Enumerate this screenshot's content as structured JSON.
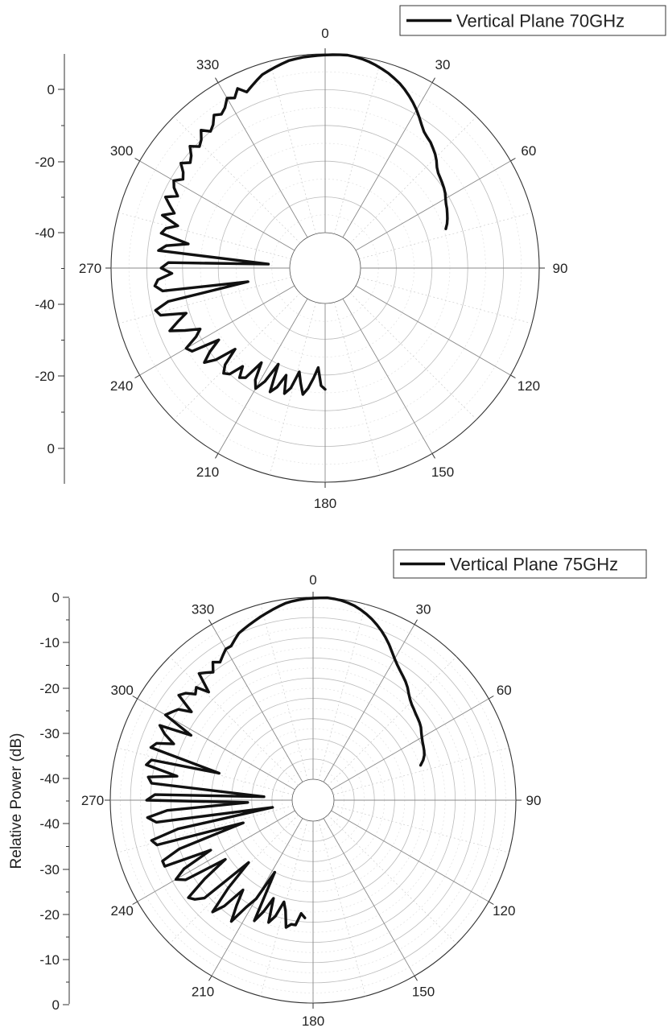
{
  "chart_data": [
    {
      "type": "polar-line",
      "legend": "Vertical Plane 70GHz",
      "legend_placement": "top-right",
      "ylabel": "",
      "r_range_db": [
        -50,
        0
      ],
      "r_tick_labels": [
        "0",
        "-20",
        "-40",
        "-40",
        "-20",
        "0"
      ],
      "angle_tick_labels": [
        "0",
        "30",
        "60",
        "90",
        "120",
        "150",
        "180",
        "210",
        "240",
        "270",
        "300",
        "330"
      ],
      "grid": true,
      "series": [
        {
          "name": "Vertical Plane 70GHz",
          "theta_deg": [
            180,
            182,
            184,
            186,
            188,
            190,
            192,
            194,
            196,
            198,
            200,
            202,
            204,
            206,
            208,
            210,
            212,
            214,
            216,
            218,
            220,
            222,
            224,
            226,
            228,
            230,
            232,
            234,
            236,
            238,
            240,
            242,
            244,
            246,
            248,
            250,
            252,
            254,
            256,
            258,
            260,
            262,
            264,
            266,
            268,
            270,
            272,
            274,
            276,
            278,
            280,
            282,
            284,
            286,
            288,
            290,
            292,
            294,
            296,
            298,
            300,
            302,
            304,
            306,
            308,
            310,
            312,
            314,
            316,
            318,
            320,
            322,
            324,
            326,
            328,
            330,
            332,
            334,
            336,
            338,
            340,
            342,
            344,
            346,
            348,
            350,
            352,
            354,
            356,
            358,
            360,
            362,
            364,
            366,
            368,
            370,
            372,
            374,
            376,
            378,
            380,
            382,
            384,
            386,
            388,
            390,
            392,
            394,
            396,
            398,
            400,
            402,
            404,
            406,
            408,
            410,
            412,
            414,
            416,
            418,
            420,
            422,
            424,
            426,
            428,
            430,
            432
          ],
          "db": [
            -26,
            -27,
            -32,
            -29,
            -26,
            -24,
            -27,
            -30,
            -25,
            -23,
            -28,
            -24,
            -22,
            -30,
            -24,
            -21,
            -23,
            -28,
            -22,
            -21,
            -24,
            -20,
            -19,
            -21,
            -26,
            -20,
            -17,
            -20,
            -24,
            -16,
            -15,
            -19,
            -21,
            -17,
            -13,
            -16,
            -19,
            -12,
            -11,
            -15,
            -38,
            -14,
            -12,
            -13,
            -17,
            -14,
            -16,
            -44,
            -13,
            -15,
            -21,
            -13,
            -14,
            -17,
            -12,
            -15,
            -13,
            -11,
            -14,
            -12,
            -11,
            -13,
            -12,
            -10,
            -12,
            -11,
            -9,
            -11,
            -10,
            -8,
            -10,
            -9,
            -7,
            -8,
            -7,
            -5,
            -6,
            -4,
            -6,
            -5,
            -4,
            -3,
            -2.5,
            -2,
            -1.5,
            -1,
            -0.8,
            -0.6,
            -0.5,
            -0.4,
            -0.3,
            -0.2,
            -0.1,
            0,
            -0.2,
            -0.5,
            -0.9,
            -1.4,
            -2,
            -2.6,
            -3.4,
            -4.2,
            -5.2,
            -6.3,
            -7.5,
            -8.8,
            -10.2,
            -11.6,
            -12.8,
            -13.5,
            -14,
            -14.8,
            -15.6,
            -16.6,
            -17.8,
            -18.6,
            -19,
            -19.4,
            -19.8,
            -20.3,
            -21,
            -21.6,
            -22,
            -22.5,
            -23,
            -23.6,
            -24.4
          ]
        }
      ]
    },
    {
      "type": "polar-line",
      "legend": "Vertical Plane 75GHz",
      "legend_placement": "top-right",
      "ylabel": "Relative Power (dB)",
      "r_range_db": [
        -45,
        0
      ],
      "r_tick_labels": [
        "0",
        "-10",
        "-20",
        "-30",
        "-40",
        "-40",
        "-30",
        "-20",
        "-10",
        "0"
      ],
      "angle_tick_labels": [
        "0",
        "30",
        "60",
        "90",
        "120",
        "150",
        "180",
        "210",
        "240",
        "270",
        "300",
        "330"
      ],
      "grid": true,
      "series": [
        {
          "name": "Vertical Plane 75GHz",
          "theta_deg": [
            184,
            186,
            188,
            190,
            192,
            194,
            196,
            198,
            200,
            202,
            204,
            206,
            208,
            210,
            212,
            214,
            216,
            218,
            220,
            222,
            224,
            226,
            228,
            230,
            232,
            234,
            236,
            238,
            240,
            242,
            244,
            246,
            248,
            250,
            252,
            254,
            256,
            258,
            260,
            262,
            264,
            266,
            268,
            270,
            272,
            274,
            276,
            278,
            280,
            282,
            284,
            286,
            288,
            290,
            292,
            294,
            296,
            298,
            300,
            302,
            304,
            306,
            308,
            310,
            312,
            314,
            316,
            318,
            320,
            322,
            324,
            326,
            328,
            330,
            332,
            334,
            336,
            338,
            340,
            342,
            344,
            346,
            348,
            350,
            352,
            354,
            356,
            358,
            360,
            362,
            364,
            366,
            368,
            370,
            372,
            374,
            376,
            378,
            380,
            382,
            384,
            386,
            388,
            390,
            392,
            394,
            396,
            398,
            400,
            402,
            404,
            406,
            408,
            410,
            412,
            414,
            416,
            418,
            420,
            422,
            424,
            426,
            428,
            430,
            432
          ],
          "db": [
            -21,
            -22,
            -19,
            -19,
            -18,
            -22,
            -24,
            -20,
            -18,
            -24,
            -20,
            -17,
            -30,
            -22,
            -19,
            -14,
            -18,
            -22,
            -16,
            -13,
            -20,
            -28,
            -14,
            -12,
            -11,
            -17,
            -24,
            -13,
            -11,
            -14,
            -22,
            -10,
            -10,
            -15,
            -32,
            -10,
            -9,
            -16,
            -40,
            -11,
            -9,
            -14,
            -34,
            -9,
            -11,
            -38,
            -10,
            -9,
            -16,
            -8,
            -9,
            -26,
            -8,
            -9,
            -13,
            -10,
            -8,
            -16,
            -8,
            -9,
            -10,
            -13,
            -8,
            -9,
            -11,
            -10,
            -13,
            -8,
            -9,
            -10,
            -8,
            -9,
            -8,
            -7,
            -7,
            -6,
            -5,
            -4.5,
            -4,
            -3.5,
            -3,
            -2.5,
            -2,
            -1.5,
            -1,
            -0.7,
            -0.5,
            -0.3,
            -0.2,
            -0.1,
            0,
            -0.1,
            -0.3,
            -0.6,
            -1,
            -1.6,
            -2.3,
            -3.1,
            -4,
            -5,
            -6.1,
            -7.3,
            -8.6,
            -9.8,
            -10.8,
            -11.6,
            -12.3,
            -13,
            -13.8,
            -14.8,
            -15.6,
            -16.2,
            -16.6,
            -17,
            -17.3,
            -17.6,
            -18,
            -18.6,
            -19.1,
            -19.5,
            -19.8,
            -20.1,
            -20.5,
            -21.2,
            -22.2
          ]
        }
      ]
    }
  ]
}
